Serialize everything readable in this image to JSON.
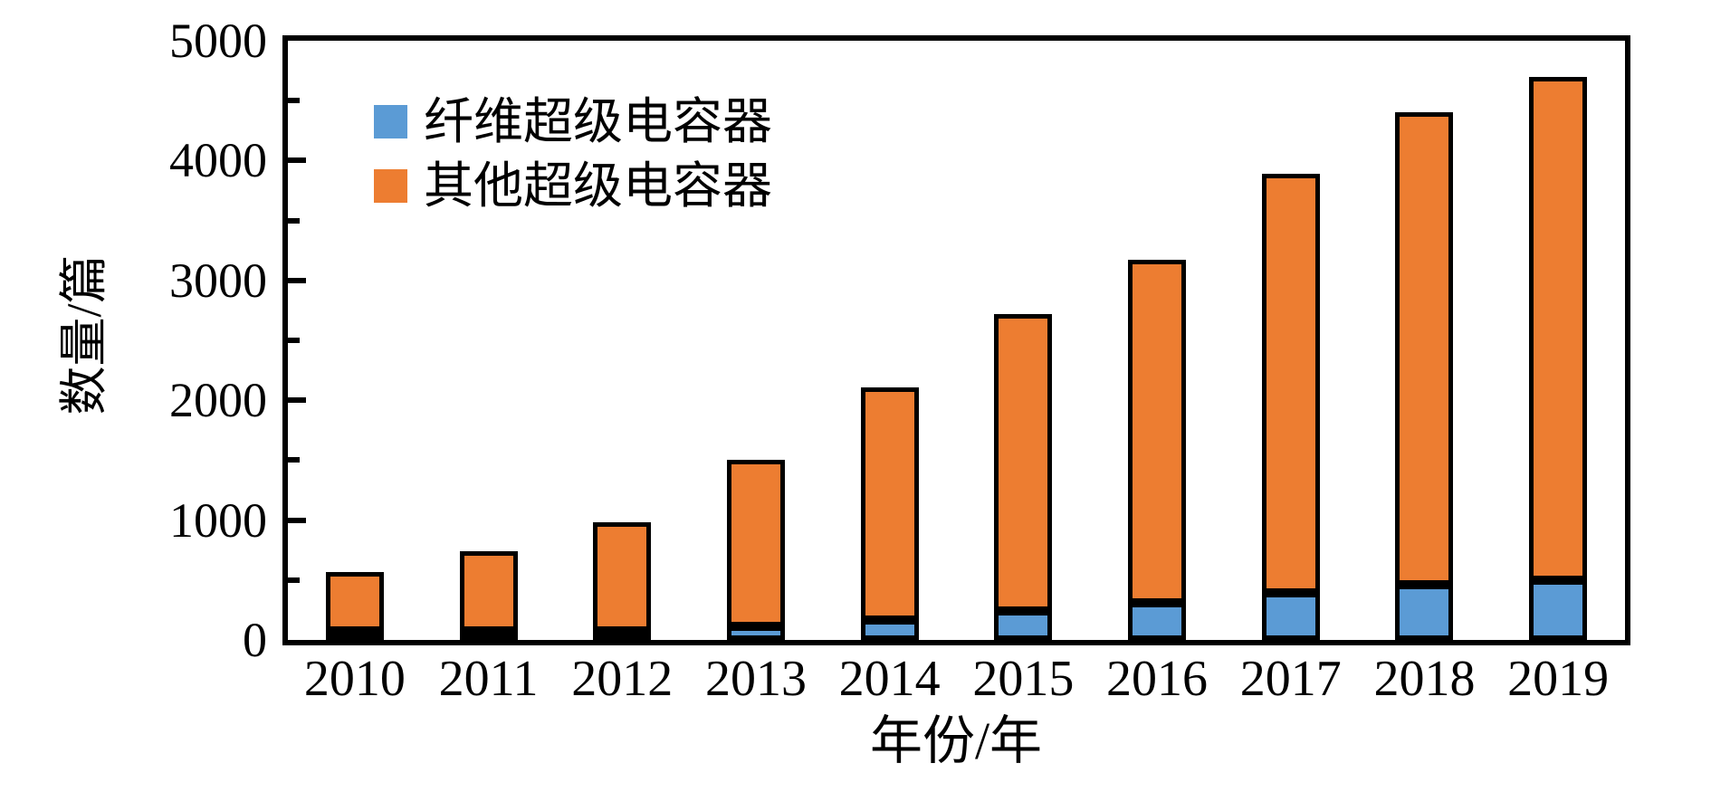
{
  "figure": {
    "background": "#ffffff",
    "text_color": "#000000",
    "outline_color": "#000000"
  },
  "chart_data": {
    "type": "bar",
    "stacked": true,
    "categories": [
      "2010",
      "2011",
      "2012",
      "2013",
      "2014",
      "2015",
      "2016",
      "2017",
      "2018",
      "2019"
    ],
    "series": [
      {
        "name": "纤维超级电容器",
        "color": "#5B9BD5",
        "values": [
          10,
          25,
          70,
          110,
          170,
          240,
          310,
          390,
          460,
          500
        ]
      },
      {
        "name": "其他超级电容器",
        "color": "#ED7D31",
        "values": [
          490,
          665,
          910,
          1390,
          1940,
          2480,
          2860,
          3500,
          3940,
          4200
        ]
      }
    ],
    "totals": [
      500,
      690,
      980,
      1500,
      2110,
      2720,
      3170,
      3890,
      4400,
      4700
    ],
    "title": "",
    "xlabel": "年份/年",
    "ylabel": "数量/篇",
    "ylim": [
      0,
      5000
    ],
    "y_major_ticks": [
      0,
      1000,
      2000,
      3000,
      4000,
      5000
    ],
    "y_minor_ticks": [
      500,
      1500,
      2500,
      3500,
      4500
    ],
    "grid": "off",
    "legend_position": "upper-left-inside",
    "bar_outline_color": "#000000"
  },
  "legend": {
    "items": [
      {
        "label": "纤维超级电容器",
        "color": "#5B9BD5"
      },
      {
        "label": "其他超级电容器",
        "color": "#ED7D31"
      }
    ]
  }
}
